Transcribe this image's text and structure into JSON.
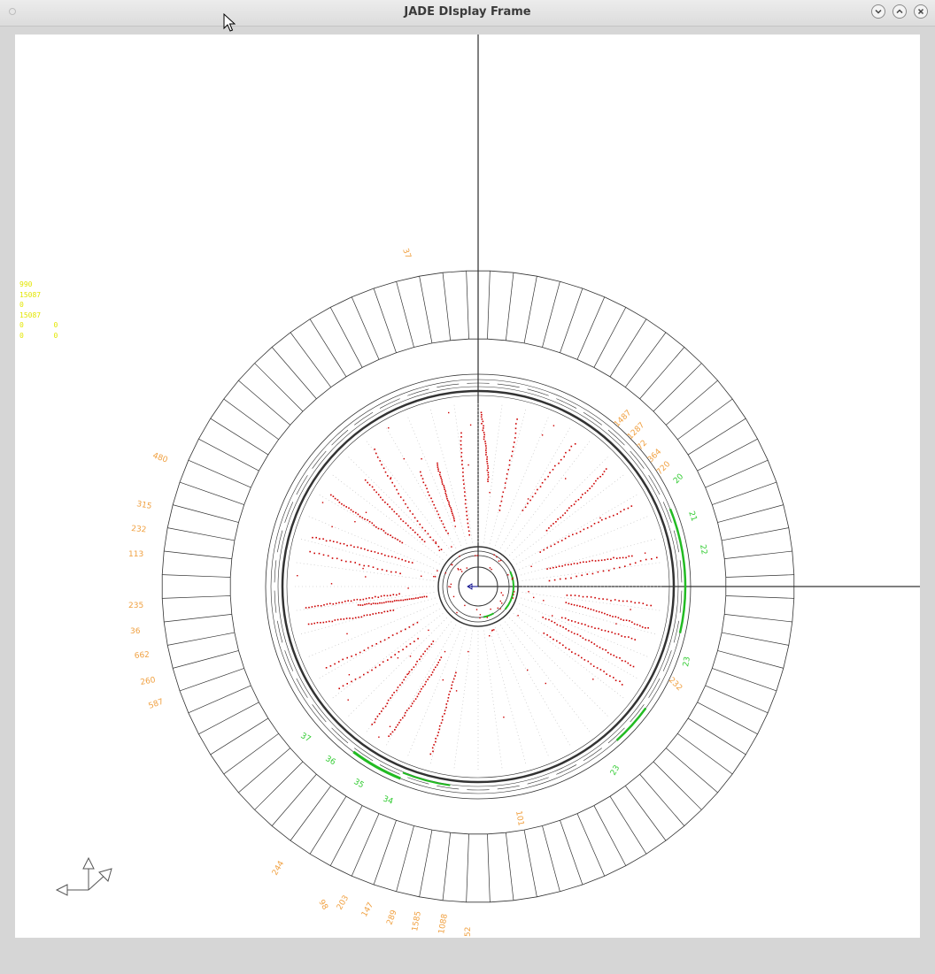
{
  "window": {
    "title": "JADE DIsplay Frame"
  },
  "colors": {
    "hits": "#cc0000",
    "energy_labels": "#f0a040",
    "tof_labels": "#33cc33",
    "info_text": "#e3e600",
    "axes": "#000000",
    "detector": "#333333",
    "muon_green": "#22bb22"
  },
  "info_block": {
    "line1": "990",
    "line2": "15087",
    "line3": "0",
    "line4": "15087",
    "line5_a": "0",
    "line5_b": "0",
    "line6_a": "0",
    "line6_b": "0"
  },
  "energy_labels_left": [
    "37",
    "480",
    "315",
    "232",
    "113",
    "235",
    "36",
    "662",
    "260",
    "587"
  ],
  "energy_labels_right": [
    "1487",
    "1287",
    "72",
    "364",
    "720",
    "232"
  ],
  "energy_labels_bottom": [
    "244",
    "98",
    "203",
    "147",
    "289",
    "1585",
    "1088",
    "52",
    "101"
  ],
  "tof_labels": [
    "20",
    "21",
    "22",
    "23",
    "23",
    "37",
    "36",
    "35",
    "34"
  ],
  "icons": {
    "axes_triad": "3d-axes-icon",
    "cursor": "mouse-pointer-icon"
  }
}
